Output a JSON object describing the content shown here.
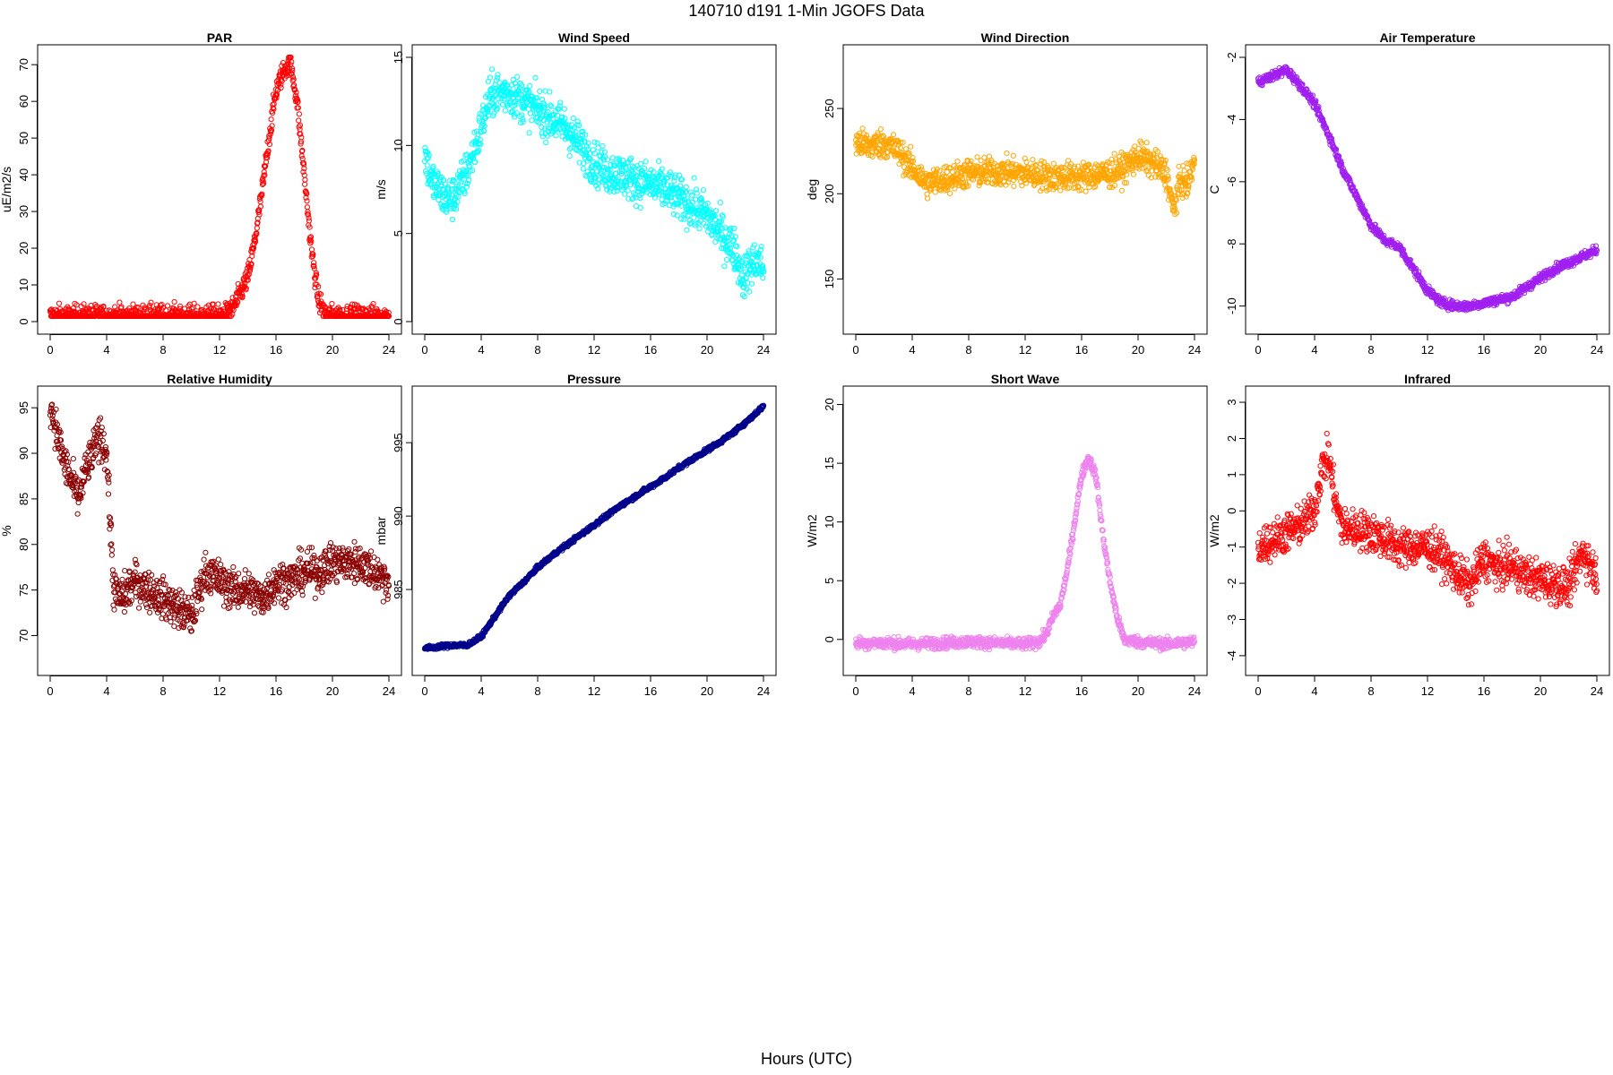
{
  "title": "140710   d191   1-Min  JGOFS Data",
  "xlabel": "Hours (UTC)",
  "x_ticks": [
    0,
    4,
    8,
    12,
    16,
    20,
    24
  ],
  "chart_data": [
    {
      "type": "scatter",
      "title": "PAR",
      "ylabel": "uE/m2/s",
      "color": "#ff0000",
      "xlim": [
        0,
        24
      ],
      "ylim": [
        0,
        72
      ],
      "y_ticks": [
        0,
        10,
        20,
        30,
        40,
        50,
        60,
        70
      ],
      "x": [
        0,
        1,
        2,
        3,
        4,
        5,
        6,
        7,
        8,
        9,
        10,
        11,
        12,
        12.5,
        13,
        13.5,
        14,
        14.5,
        15,
        15.5,
        16,
        16.5,
        17,
        17.5,
        18,
        18.5,
        19,
        19.5,
        20,
        21,
        22,
        23,
        24
      ],
      "y": [
        1.5,
        1.5,
        1.5,
        1.5,
        1.5,
        1.5,
        1.5,
        1.5,
        1.5,
        1.5,
        1.5,
        1.5,
        1.5,
        2,
        4,
        8,
        12,
        22,
        35,
        50,
        63,
        68,
        71,
        60,
        40,
        20,
        6,
        2,
        1.5,
        1.5,
        1.5,
        1.5,
        1.5
      ],
      "noise": 2.5
    },
    {
      "type": "scatter",
      "title": "Wind Speed",
      "ylabel": "m/s",
      "color": "#00ffff",
      "xlim": [
        0,
        24
      ],
      "ylim": [
        0,
        15
      ],
      "y_ticks": [
        0,
        5,
        10,
        15
      ],
      "x": [
        0,
        0.5,
        1,
        1.5,
        2,
        3,
        4,
        4.5,
        5,
        6,
        7,
        8,
        9,
        10,
        11,
        12,
        13,
        14,
        15,
        16,
        17,
        18,
        19,
        20,
        21,
        22,
        22.5,
        23,
        23.5,
        24
      ],
      "y": [
        9.5,
        8,
        7.5,
        7,
        7,
        8.5,
        11,
        12.5,
        13,
        13,
        12.5,
        12,
        11.5,
        11,
        10,
        9,
        8.5,
        8.3,
        8,
        7.8,
        7.5,
        7,
        6.5,
        6,
        5,
        4,
        2.5,
        3,
        3.5,
        3
      ],
      "noise": 1.0
    },
    {
      "type": "scatter",
      "title": "Wind Direction",
      "ylabel": "deg",
      "color": "#ffa500",
      "xlim": [
        0,
        24
      ],
      "ylim": [
        125,
        280
      ],
      "y_ticks": [
        150,
        200,
        250
      ],
      "x": [
        0,
        1,
        2,
        3,
        4,
        5,
        6,
        7,
        8,
        10,
        12,
        14,
        16,
        18,
        19,
        20,
        21,
        22,
        22.5,
        23,
        23.5,
        24
      ],
      "y": [
        230,
        228,
        230,
        225,
        215,
        206,
        208,
        210,
        212,
        213,
        212,
        210,
        210,
        212,
        215,
        222,
        218,
        212,
        190,
        208,
        205,
        220
      ],
      "noise": 7
    },
    {
      "type": "scatter",
      "title": "Air Temperature",
      "ylabel": "C",
      "color": "#a020f0",
      "xlim": [
        0,
        24
      ],
      "ylim": [
        -10.5,
        -2
      ],
      "y_ticks": [
        -10,
        -8,
        -6,
        -4,
        -2
      ],
      "x": [
        0,
        1,
        2,
        3,
        4,
        5,
        6,
        7,
        8,
        9,
        10,
        11,
        12,
        13,
        14,
        15,
        16,
        17,
        18,
        19,
        20,
        21,
        22,
        23,
        24
      ],
      "y": [
        -2.8,
        -2.6,
        -2.4,
        -2.9,
        -3.5,
        -4.5,
        -5.6,
        -6.5,
        -7.4,
        -7.9,
        -8.1,
        -8.8,
        -9.5,
        -9.9,
        -10,
        -10,
        -9.9,
        -9.8,
        -9.7,
        -9.4,
        -9.1,
        -8.8,
        -8.6,
        -8.4,
        -8.2
      ],
      "noise": 0.12
    },
    {
      "type": "scatter",
      "title": "Relative Humidity",
      "ylabel": "%",
      "color": "#8b0000",
      "xlim": [
        0,
        24
      ],
      "ylim": [
        67,
        96
      ],
      "y_ticks": [
        70,
        75,
        80,
        85,
        90,
        95
      ],
      "x": [
        0,
        0.5,
        1,
        1.5,
        2,
        2.5,
        3,
        3.5,
        4,
        4.5,
        5,
        6,
        7,
        8,
        9,
        10,
        11,
        12,
        13,
        14,
        15,
        16,
        17,
        18,
        19,
        20,
        21,
        22,
        23,
        24
      ],
      "y": [
        95.5,
        92,
        89,
        87,
        85,
        88,
        90,
        92,
        90,
        75,
        74,
        76,
        75,
        74,
        73,
        72,
        77,
        76,
        75,
        75,
        74,
        76,
        76,
        77,
        77,
        78,
        78,
        78,
        77,
        76
      ],
      "noise": 1.8
    },
    {
      "type": "scatter",
      "title": "Pressure",
      "ylabel": "mbar",
      "color": "#00008b",
      "xlim": [
        0,
        24
      ],
      "ylim": [
        980,
        998
      ],
      "y_ticks": [
        985,
        990,
        995
      ],
      "x": [
        0,
        1,
        2,
        3,
        4,
        5,
        6,
        7,
        8,
        9,
        10,
        11,
        12,
        13,
        14,
        15,
        16,
        17,
        18,
        19,
        20,
        21,
        22,
        23,
        24
      ],
      "y": [
        981,
        981.1,
        981.2,
        981.2,
        981.8,
        983.2,
        984.6,
        985.5,
        986.5,
        987.3,
        988,
        988.7,
        989.4,
        990.1,
        990.8,
        991.4,
        992,
        992.6,
        993.3,
        993.9,
        994.5,
        995.1,
        995.8,
        996.6,
        997.5
      ],
      "noise": 0.12
    },
    {
      "type": "scatter",
      "title": "Short Wave",
      "ylabel": "W/m2",
      "color": "#ee82ee",
      "xlim": [
        0,
        24
      ],
      "ylim": [
        -2,
        20.5
      ],
      "y_ticks": [
        0,
        5,
        10,
        15,
        20
      ],
      "x": [
        0,
        2,
        4,
        6,
        8,
        10,
        12,
        13,
        13.5,
        14,
        14.5,
        15,
        15.5,
        16,
        16.5,
        17,
        17.5,
        18,
        18.5,
        19,
        20,
        22,
        24
      ],
      "y": [
        -0.3,
        -0.3,
        -0.4,
        -0.3,
        -0.2,
        -0.3,
        -0.4,
        -0.2,
        0.5,
        2,
        3,
        6,
        10,
        14,
        15.5,
        14,
        9,
        5,
        2,
        0,
        -0.2,
        -0.4,
        -0.2
      ],
      "noise": 0.4
    },
    {
      "type": "scatter",
      "title": "Infrared",
      "ylabel": "W/m2",
      "color": "#ff0000",
      "xlim": [
        0,
        24
      ],
      "ylim": [
        -4.2,
        3.1
      ],
      "y_ticks": [
        -4,
        -3,
        -2,
        -1,
        0,
        1,
        2,
        3
      ],
      "x": [
        0,
        1,
        2,
        3,
        4,
        4.5,
        5,
        5.5,
        6,
        7,
        8,
        9,
        10,
        11,
        12,
        13,
        14,
        15,
        16,
        17,
        18,
        19,
        20,
        21,
        22,
        23,
        24
      ],
      "y": [
        -1,
        -0.8,
        -0.6,
        -0.4,
        0,
        1.2,
        1.5,
        0.2,
        -0.5,
        -0.5,
        -0.6,
        -0.8,
        -1,
        -1,
        -1,
        -1.2,
        -1.7,
        -2.1,
        -1.3,
        -1.6,
        -1.5,
        -1.8,
        -1.9,
        -2,
        -2.1,
        -1.1,
        -1.8
      ],
      "noise": 0.45
    }
  ]
}
